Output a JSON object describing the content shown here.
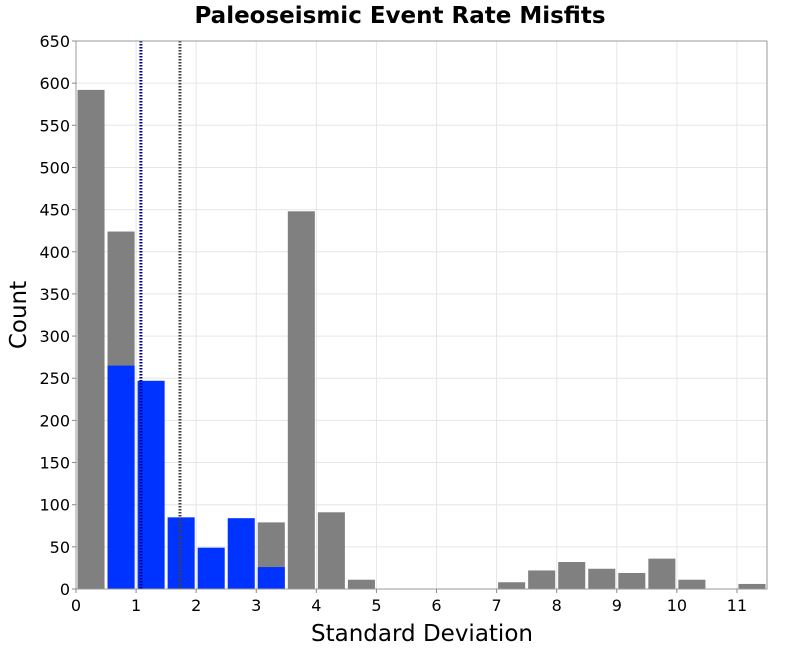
{
  "chart_data": {
    "type": "bar",
    "title": "Paleoseismic Event Rate Misfits",
    "xlabel": "Standard Deviation",
    "ylabel": "Count",
    "xlim": [
      0,
      11.5
    ],
    "ylim": [
      0,
      650
    ],
    "bin_width": 0.5,
    "xticks": [
      "0",
      "1",
      "2",
      "3",
      "4",
      "5",
      "6",
      "7",
      "8",
      "9",
      "10",
      "11"
    ],
    "yticks": [
      "0",
      "50",
      "100",
      "150",
      "200",
      "250",
      "300",
      "350",
      "400",
      "450",
      "500",
      "550",
      "600",
      "650"
    ],
    "grid": true,
    "series": [
      {
        "color": "#808080",
        "bins": [
          {
            "x": 0.25,
            "y": 592
          },
          {
            "x": 0.75,
            "y": 424
          },
          {
            "x": 1.25,
            "y": 0
          },
          {
            "x": 1.75,
            "y": 0
          },
          {
            "x": 2.25,
            "y": 0
          },
          {
            "x": 2.75,
            "y": 0
          },
          {
            "x": 3.25,
            "y": 79
          },
          {
            "x": 3.75,
            "y": 448
          },
          {
            "x": 4.25,
            "y": 91
          },
          {
            "x": 4.75,
            "y": 11
          },
          {
            "x": 7.25,
            "y": 8
          },
          {
            "x": 7.75,
            "y": 22
          },
          {
            "x": 8.25,
            "y": 32
          },
          {
            "x": 8.75,
            "y": 24
          },
          {
            "x": 9.25,
            "y": 19
          },
          {
            "x": 9.75,
            "y": 36
          },
          {
            "x": 10.25,
            "y": 11
          },
          {
            "x": 11.25,
            "y": 6
          }
        ]
      },
      {
        "color": "#0033ff",
        "bins": [
          {
            "x": 0.75,
            "y": 265
          },
          {
            "x": 1.25,
            "y": 247
          },
          {
            "x": 1.75,
            "y": 85
          },
          {
            "x": 2.25,
            "y": 49
          },
          {
            "x": 2.75,
            "y": 84
          },
          {
            "x": 3.25,
            "y": 26
          }
        ]
      }
    ],
    "vlines": [
      {
        "x": 1.08,
        "color": "#00008b",
        "style": "dotted"
      },
      {
        "x": 1.73,
        "color": "#404040",
        "style": "dotted"
      }
    ]
  }
}
